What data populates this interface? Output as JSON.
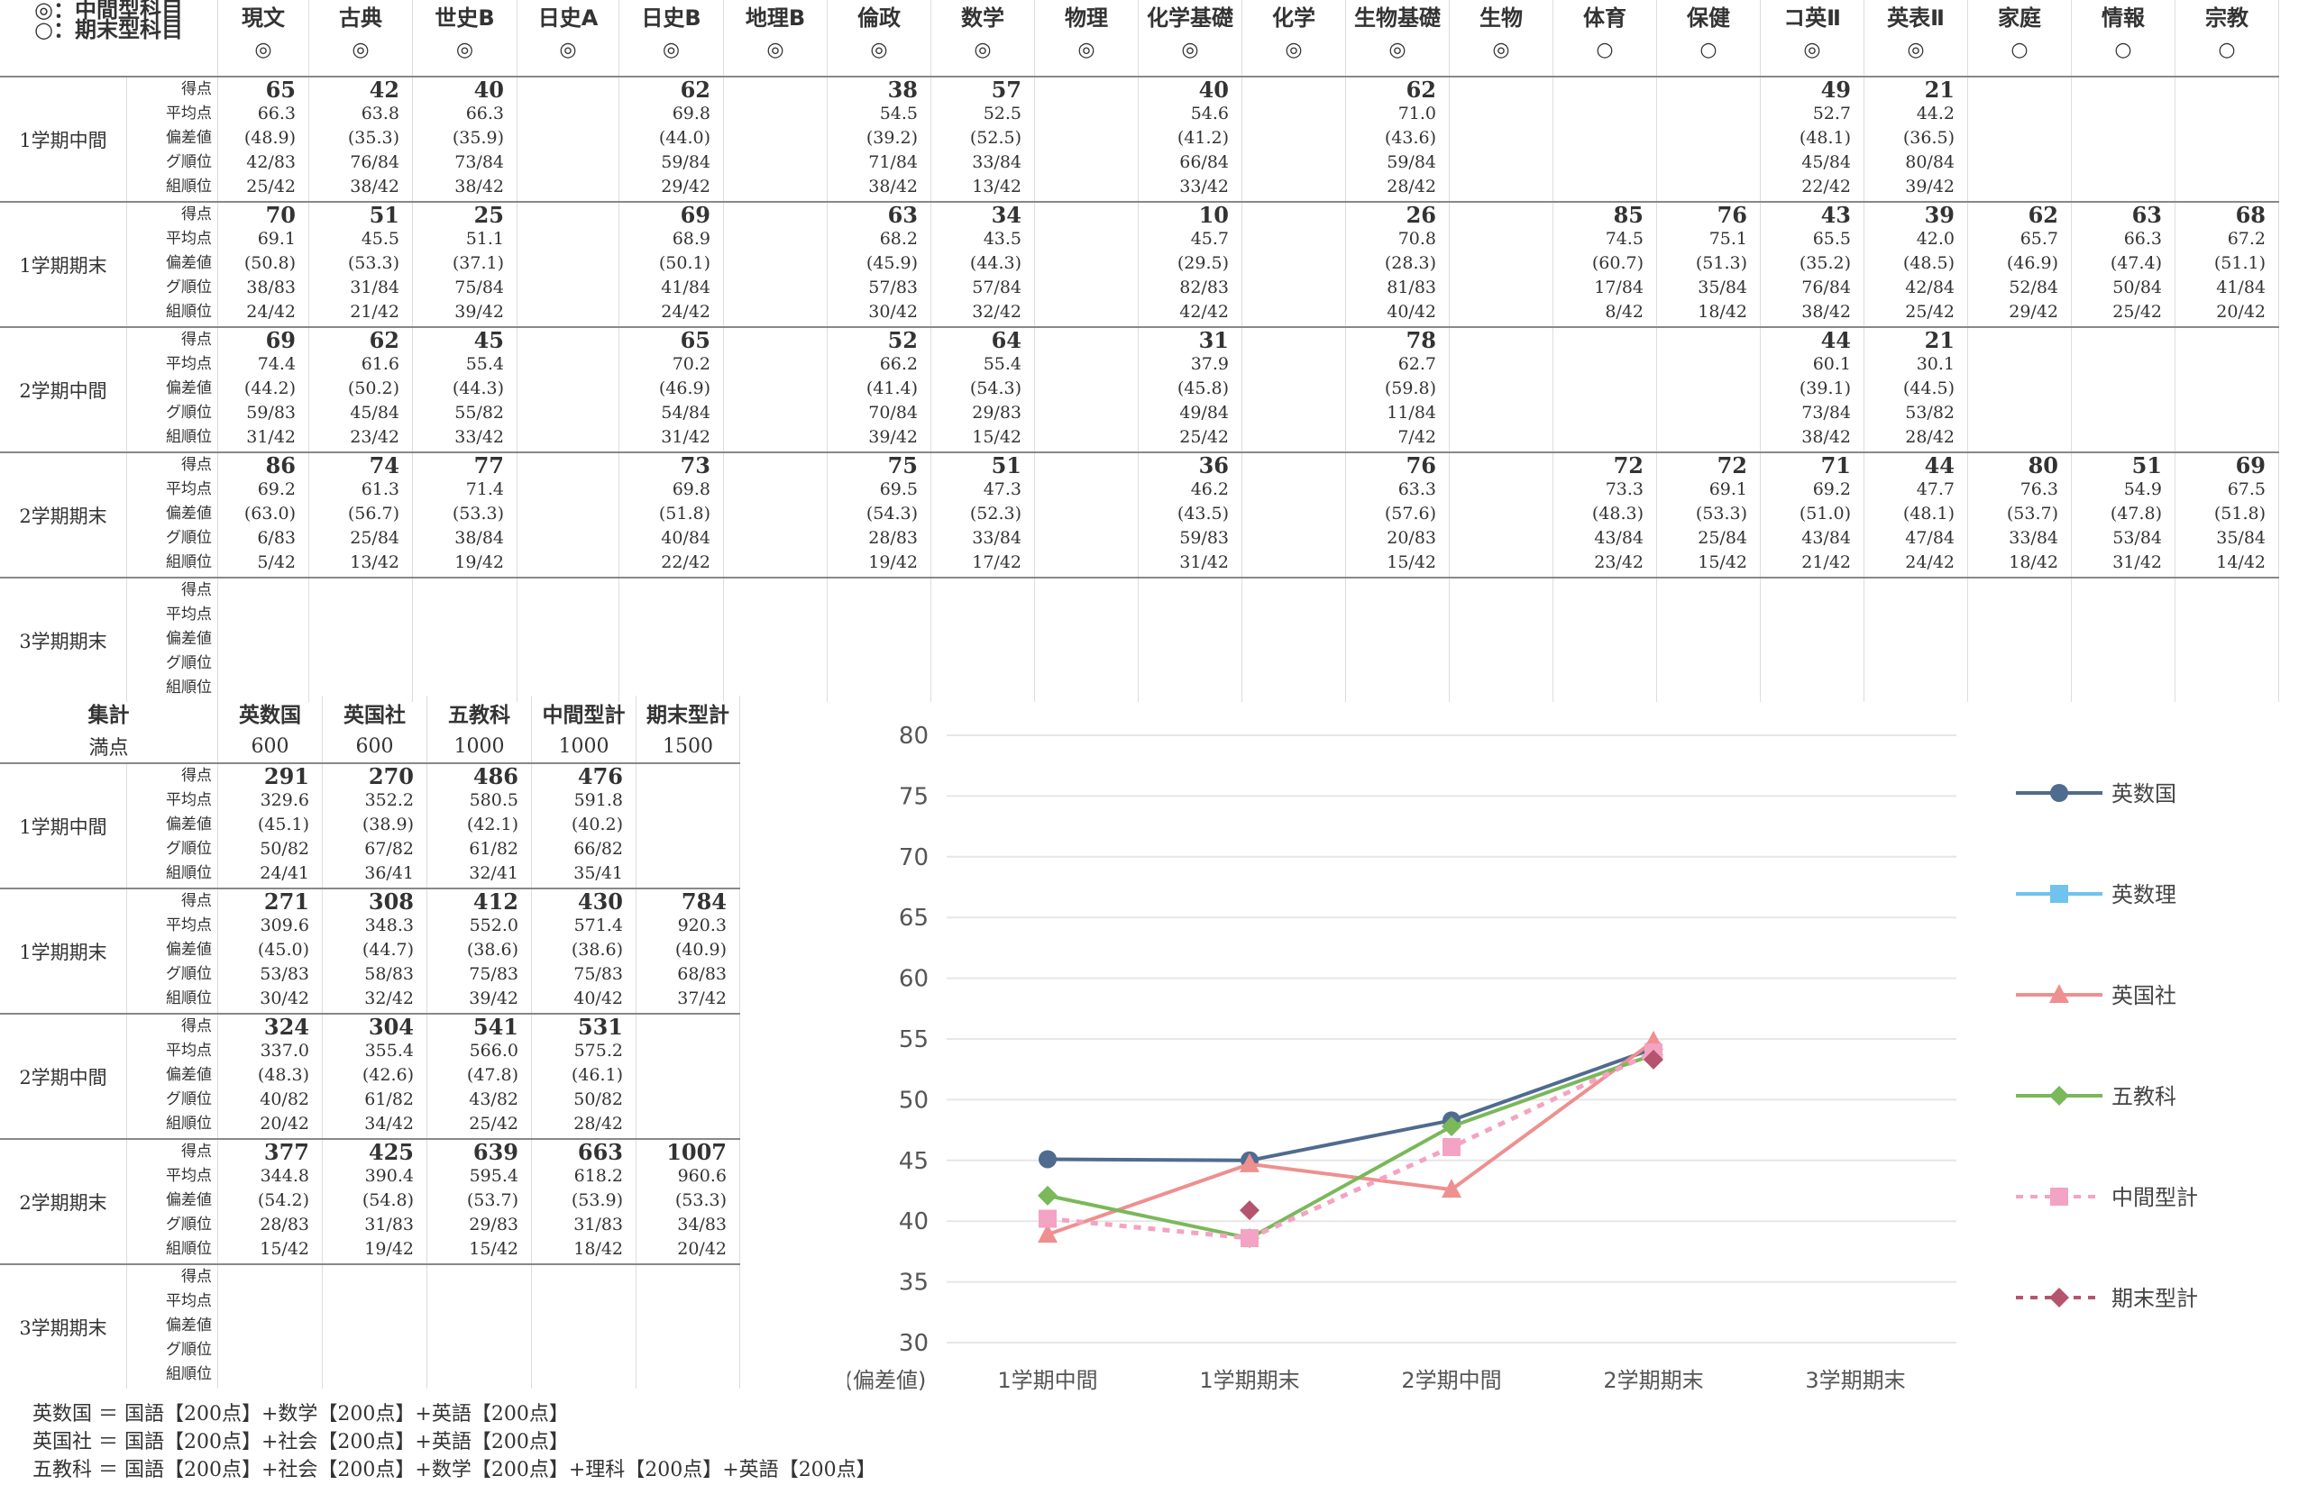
{
  "legend_top": [
    "◎：中間型科目",
    "○：期末型科目"
  ],
  "subjects": [
    {
      "name": "現文",
      "mark": "◎"
    },
    {
      "name": "古典",
      "mark": "◎"
    },
    {
      "name": "世史B",
      "mark": "◎"
    },
    {
      "name": "日史A",
      "mark": "◎"
    },
    {
      "name": "日史B",
      "mark": "◎"
    },
    {
      "name": "地理B",
      "mark": "◎"
    },
    {
      "name": "倫政",
      "mark": "◎"
    },
    {
      "name": "数学",
      "mark": "◎"
    },
    {
      "name": "物理",
      "mark": "◎"
    },
    {
      "name": "化学基礎",
      "mark": "◎"
    },
    {
      "name": "化学",
      "mark": "◎"
    },
    {
      "name": "生物基礎",
      "mark": "◎"
    },
    {
      "name": "生物",
      "mark": "◎"
    },
    {
      "name": "体育",
      "mark": "○"
    },
    {
      "name": "保健",
      "mark": "○"
    },
    {
      "name": "コ英Ⅱ",
      "mark": "◎"
    },
    {
      "name": "英表Ⅱ",
      "mark": "◎"
    },
    {
      "name": "家庭",
      "mark": "○"
    },
    {
      "name": "情報",
      "mark": "○"
    },
    {
      "name": "宗教",
      "mark": "○"
    }
  ],
  "row_labels": [
    "得点",
    "平均点",
    "偏差値",
    "グ順位",
    "組順位"
  ],
  "terms": [
    {
      "name": "1学期中間",
      "cells": [
        [
          "65",
          "66.3",
          "(48.9)",
          "42/83",
          "25/42"
        ],
        [
          "42",
          "63.8",
          "(35.3)",
          "76/84",
          "38/42"
        ],
        [
          "40",
          "66.3",
          "(35.9)",
          "73/84",
          "38/42"
        ],
        null,
        [
          "62",
          "69.8",
          "(44.0)",
          "59/84",
          "29/42"
        ],
        null,
        [
          "38",
          "54.5",
          "(39.2)",
          "71/84",
          "38/42"
        ],
        [
          "57",
          "52.5",
          "(52.5)",
          "33/84",
          "13/42"
        ],
        null,
        [
          "40",
          "54.6",
          "(41.2)",
          "66/84",
          "33/42"
        ],
        null,
        [
          "62",
          "71.0",
          "(43.6)",
          "59/84",
          "28/42"
        ],
        null,
        null,
        null,
        [
          "49",
          "52.7",
          "(48.1)",
          "45/84",
          "22/42"
        ],
        [
          "21",
          "44.2",
          "(36.5)",
          "80/84",
          "39/42"
        ],
        null,
        null,
        null
      ]
    },
    {
      "name": "1学期期末",
      "cells": [
        [
          "70",
          "69.1",
          "(50.8)",
          "38/83",
          "24/42"
        ],
        [
          "51",
          "45.5",
          "(53.3)",
          "31/84",
          "21/42"
        ],
        [
          "25",
          "51.1",
          "(37.1)",
          "75/84",
          "39/42"
        ],
        null,
        [
          "69",
          "68.9",
          "(50.1)",
          "41/84",
          "24/42"
        ],
        null,
        [
          "63",
          "68.2",
          "(45.9)",
          "57/83",
          "30/42"
        ],
        [
          "34",
          "43.5",
          "(44.3)",
          "57/84",
          "32/42"
        ],
        null,
        [
          "10",
          "45.7",
          "(29.5)",
          "82/83",
          "42/42"
        ],
        null,
        [
          "26",
          "70.8",
          "(28.3)",
          "81/83",
          "40/42"
        ],
        null,
        [
          "85",
          "74.5",
          "(60.7)",
          "17/84",
          "8/42"
        ],
        [
          "76",
          "75.1",
          "(51.3)",
          "35/84",
          "18/42"
        ],
        [
          "43",
          "65.5",
          "(35.2)",
          "76/84",
          "38/42"
        ],
        [
          "39",
          "42.0",
          "(48.5)",
          "42/84",
          "25/42"
        ],
        [
          "62",
          "65.7",
          "(46.9)",
          "52/84",
          "29/42"
        ],
        [
          "63",
          "66.3",
          "(47.4)",
          "50/84",
          "25/42"
        ],
        [
          "68",
          "67.2",
          "(51.1)",
          "41/84",
          "20/42"
        ]
      ]
    },
    {
      "name": "2学期中間",
      "cells": [
        [
          "69",
          "74.4",
          "(44.2)",
          "59/83",
          "31/42"
        ],
        [
          "62",
          "61.6",
          "(50.2)",
          "45/84",
          "23/42"
        ],
        [
          "45",
          "55.4",
          "(44.3)",
          "55/82",
          "33/42"
        ],
        null,
        [
          "65",
          "70.2",
          "(46.9)",
          "54/84",
          "31/42"
        ],
        null,
        [
          "52",
          "66.2",
          "(41.4)",
          "70/84",
          "39/42"
        ],
        [
          "64",
          "55.4",
          "(54.3)",
          "29/83",
          "15/42"
        ],
        null,
        [
          "31",
          "37.9",
          "(45.8)",
          "49/84",
          "25/42"
        ],
        null,
        [
          "78",
          "62.7",
          "(59.8)",
          "11/84",
          "7/42"
        ],
        null,
        null,
        null,
        [
          "44",
          "60.1",
          "(39.1)",
          "73/84",
          "38/42"
        ],
        [
          "21",
          "30.1",
          "(44.5)",
          "53/82",
          "28/42"
        ],
        null,
        null,
        null
      ]
    },
    {
      "name": "2学期期末",
      "cells": [
        [
          "86",
          "69.2",
          "(63.0)",
          "6/83",
          "5/42"
        ],
        [
          "74",
          "61.3",
          "(56.7)",
          "25/84",
          "13/42"
        ],
        [
          "77",
          "71.4",
          "(53.3)",
          "38/84",
          "19/42"
        ],
        null,
        [
          "73",
          "69.8",
          "(51.8)",
          "40/84",
          "22/42"
        ],
        null,
        [
          "75",
          "69.5",
          "(54.3)",
          "28/83",
          "19/42"
        ],
        [
          "51",
          "47.3",
          "(52.3)",
          "33/84",
          "17/42"
        ],
        null,
        [
          "36",
          "46.2",
          "(43.5)",
          "59/83",
          "31/42"
        ],
        null,
        [
          "76",
          "63.3",
          "(57.6)",
          "20/83",
          "15/42"
        ],
        null,
        [
          "72",
          "73.3",
          "(48.3)",
          "43/84",
          "23/42"
        ],
        [
          "72",
          "69.1",
          "(53.3)",
          "25/84",
          "15/42"
        ],
        [
          "71",
          "69.2",
          "(51.0)",
          "43/84",
          "21/42"
        ],
        [
          "44",
          "47.7",
          "(48.1)",
          "47/84",
          "24/42"
        ],
        [
          "80",
          "76.3",
          "(53.7)",
          "33/84",
          "18/42"
        ],
        [
          "51",
          "54.9",
          "(47.8)",
          "53/84",
          "31/42"
        ],
        [
          "69",
          "67.5",
          "(51.8)",
          "35/84",
          "14/42"
        ]
      ]
    },
    {
      "name": "3学期期末",
      "cells": [
        null,
        null,
        null,
        null,
        null,
        null,
        null,
        null,
        null,
        null,
        null,
        null,
        null,
        null,
        null,
        null,
        null,
        null,
        null,
        null
      ]
    }
  ],
  "summary": {
    "header_label": "集計",
    "max_label": "満点",
    "columns": [
      {
        "name": "英数国",
        "max": "600"
      },
      {
        "name": "英国社",
        "max": "600"
      },
      {
        "name": "五教科",
        "max": "1000"
      },
      {
        "name": "中間型計",
        "max": "1000"
      },
      {
        "name": "期末型計",
        "max": "1500"
      }
    ],
    "terms": [
      {
        "name": "1学期中間",
        "cells": [
          [
            "291",
            "329.6",
            "(45.1)",
            "50/82",
            "24/41"
          ],
          [
            "270",
            "352.2",
            "(38.9)",
            "67/82",
            "36/41"
          ],
          [
            "486",
            "580.5",
            "(42.1)",
            "61/82",
            "32/41"
          ],
          [
            "476",
            "591.8",
            "(40.2)",
            "66/82",
            "35/41"
          ],
          null
        ]
      },
      {
        "name": "1学期期末",
        "cells": [
          [
            "271",
            "309.6",
            "(45.0)",
            "53/83",
            "30/42"
          ],
          [
            "308",
            "348.3",
            "(44.7)",
            "58/83",
            "32/42"
          ],
          [
            "412",
            "552.0",
            "(38.6)",
            "75/83",
            "39/42"
          ],
          [
            "430",
            "571.4",
            "(38.6)",
            "75/83",
            "40/42"
          ],
          [
            "784",
            "920.3",
            "(40.9)",
            "68/83",
            "37/42"
          ]
        ]
      },
      {
        "name": "2学期中間",
        "cells": [
          [
            "324",
            "337.0",
            "(48.3)",
            "40/82",
            "20/42"
          ],
          [
            "304",
            "355.4",
            "(42.6)",
            "61/82",
            "34/42"
          ],
          [
            "541",
            "566.0",
            "(47.8)",
            "43/82",
            "25/42"
          ],
          [
            "531",
            "575.2",
            "(46.1)",
            "50/82",
            "28/42"
          ],
          null
        ]
      },
      {
        "name": "2学期期末",
        "cells": [
          [
            "377",
            "344.8",
            "(54.2)",
            "28/83",
            "15/42"
          ],
          [
            "425",
            "390.4",
            "(54.8)",
            "31/83",
            "19/42"
          ],
          [
            "639",
            "595.4",
            "(53.7)",
            "29/83",
            "15/42"
          ],
          [
            "663",
            "618.2",
            "(53.9)",
            "31/83",
            "18/42"
          ],
          [
            "1007",
            "960.6",
            "(53.3)",
            "34/83",
            "20/42"
          ]
        ]
      },
      {
        "name": "3学期期末",
        "cells": [
          null,
          null,
          null,
          null,
          null
        ]
      }
    ]
  },
  "notes": [
    "英数国 ＝ 国語【200点】+数学【200点】+英語【200点】",
    "英国社 ＝ 国語【200点】+社会【200点】+英語【200点】",
    "五教科 ＝ 国語【200点】+社会【200点】+数学【200点】+理科【200点】+英語【200点】"
  ],
  "chart_data": {
    "type": "line",
    "ylabel": "(偏差値)",
    "ylim": [
      30,
      80
    ],
    "yticks": [
      30,
      35,
      40,
      45,
      50,
      55,
      60,
      65,
      70,
      75,
      80
    ],
    "categories": [
      "1学期中間",
      "1学期期末",
      "2学期中間",
      "2学期期末",
      "3学期期末"
    ],
    "legend_position": "right",
    "grid": true,
    "series": [
      {
        "name": "英数国",
        "color": "#4f6b8f",
        "marker": "circle",
        "dash": false,
        "values": [
          45.1,
          45.0,
          48.3,
          54.2,
          null
        ]
      },
      {
        "name": "英数理",
        "color": "#6fc3ee",
        "marker": "square",
        "dash": false,
        "values": [
          null,
          null,
          null,
          null,
          null
        ]
      },
      {
        "name": "英国社",
        "color": "#ef8f8f",
        "marker": "triangle",
        "dash": false,
        "values": [
          38.9,
          44.7,
          42.6,
          54.8,
          null
        ]
      },
      {
        "name": "五教科",
        "color": "#7ab85a",
        "marker": "diamond",
        "dash": false,
        "values": [
          42.1,
          38.6,
          47.8,
          53.7,
          null
        ]
      },
      {
        "name": "中間型計",
        "color": "#f3a3c3",
        "marker": "square",
        "dash": true,
        "values": [
          40.2,
          38.6,
          46.1,
          53.9,
          null
        ]
      },
      {
        "name": "期末型計",
        "color": "#b5546e",
        "marker": "diamond",
        "dash": true,
        "values": [
          null,
          40.9,
          null,
          53.3,
          null
        ]
      }
    ]
  }
}
